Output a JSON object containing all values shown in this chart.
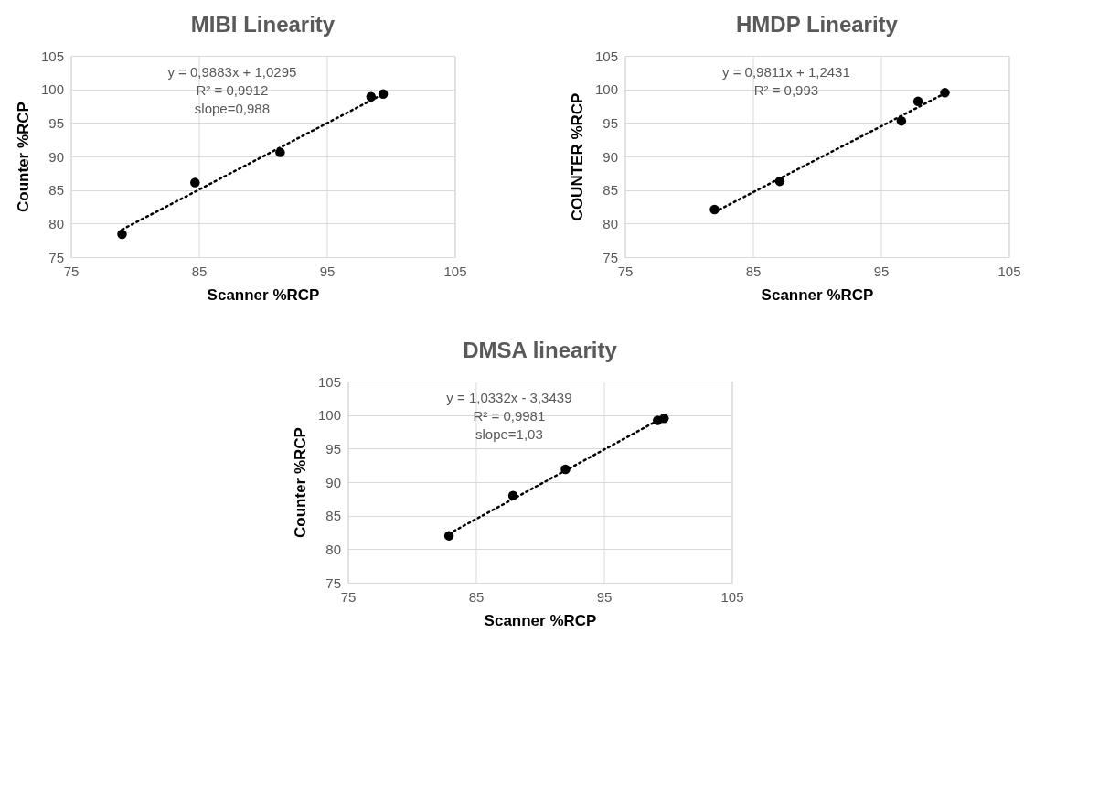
{
  "chart_data": [
    {
      "type": "scatter",
      "title": "MIBI Linearity",
      "xlabel": "Scanner %RCP",
      "ylabel": "Counter %RCP",
      "xlim": [
        75,
        105
      ],
      "xticks": [
        75,
        85,
        95,
        105
      ],
      "ylim": [
        75,
        105
      ],
      "yticks": [
        75,
        80,
        85,
        90,
        95,
        100,
        105
      ],
      "grid": true,
      "annotations": [
        "y = 0,9883x + 1,0295",
        "R² = 0,9912",
        "slope=0,988"
      ],
      "series": [
        {
          "color": "#000000",
          "marker": "circle",
          "x": [
            79.0,
            84.7,
            91.35,
            98.45,
            99.4
          ],
          "values": [
            78.4,
            86.1,
            90.6,
            98.9,
            99.3
          ]
        },
        {
          "type": "line",
          "color": "#000000",
          "marker": "none",
          "line_style": "dotted",
          "x": [
            79.0,
            99.4
          ],
          "values": [
            79.1,
            99.3
          ]
        }
      ]
    },
    {
      "type": "scatter",
      "title": "HMDP Linearity",
      "xlabel": "Scanner %RCP",
      "ylabel": "COUNTER %RCP",
      "xlim": [
        75,
        105
      ],
      "xticks": [
        75,
        85,
        95,
        105
      ],
      "ylim": [
        75,
        105
      ],
      "yticks": [
        75,
        80,
        85,
        90,
        95,
        100,
        105
      ],
      "grid": true,
      "annotations": [
        "y = 0,9811x + 1,2431",
        "R² = 0,993"
      ],
      "series": [
        {
          "color": "#000000",
          "marker": "circle",
          "x": [
            82.0,
            87.1,
            96.6,
            97.9,
            100.0
          ],
          "values": [
            82.1,
            86.3,
            95.3,
            98.2,
            99.5
          ]
        },
        {
          "type": "line",
          "color": "#000000",
          "marker": "none",
          "line_style": "dotted",
          "x": [
            82.0,
            100.0
          ],
          "values": [
            81.7,
            99.4
          ]
        }
      ]
    },
    {
      "type": "scatter",
      "title": "DMSA linearity",
      "xlabel": "Scanner %RCP",
      "ylabel": "Counter %RCP",
      "xlim": [
        75,
        105
      ],
      "xticks": [
        75,
        85,
        95,
        105
      ],
      "ylim": [
        75,
        105
      ],
      "yticks": [
        75,
        80,
        85,
        90,
        95,
        100,
        105
      ],
      "grid": true,
      "annotations": [
        "y = 1,0332x - 3,3439",
        "R² = 0,9981",
        "slope=1,03"
      ],
      "series": [
        {
          "color": "#000000",
          "marker": "circle",
          "x": [
            82.9,
            87.9,
            92.0,
            99.2,
            99.7
          ],
          "values": [
            82.0,
            88.0,
            91.9,
            99.2,
            99.5
          ]
        },
        {
          "type": "line",
          "color": "#000000",
          "marker": "none",
          "line_style": "dotted",
          "x": [
            82.9,
            99.7
          ],
          "values": [
            82.3,
            99.7
          ]
        }
      ]
    }
  ]
}
